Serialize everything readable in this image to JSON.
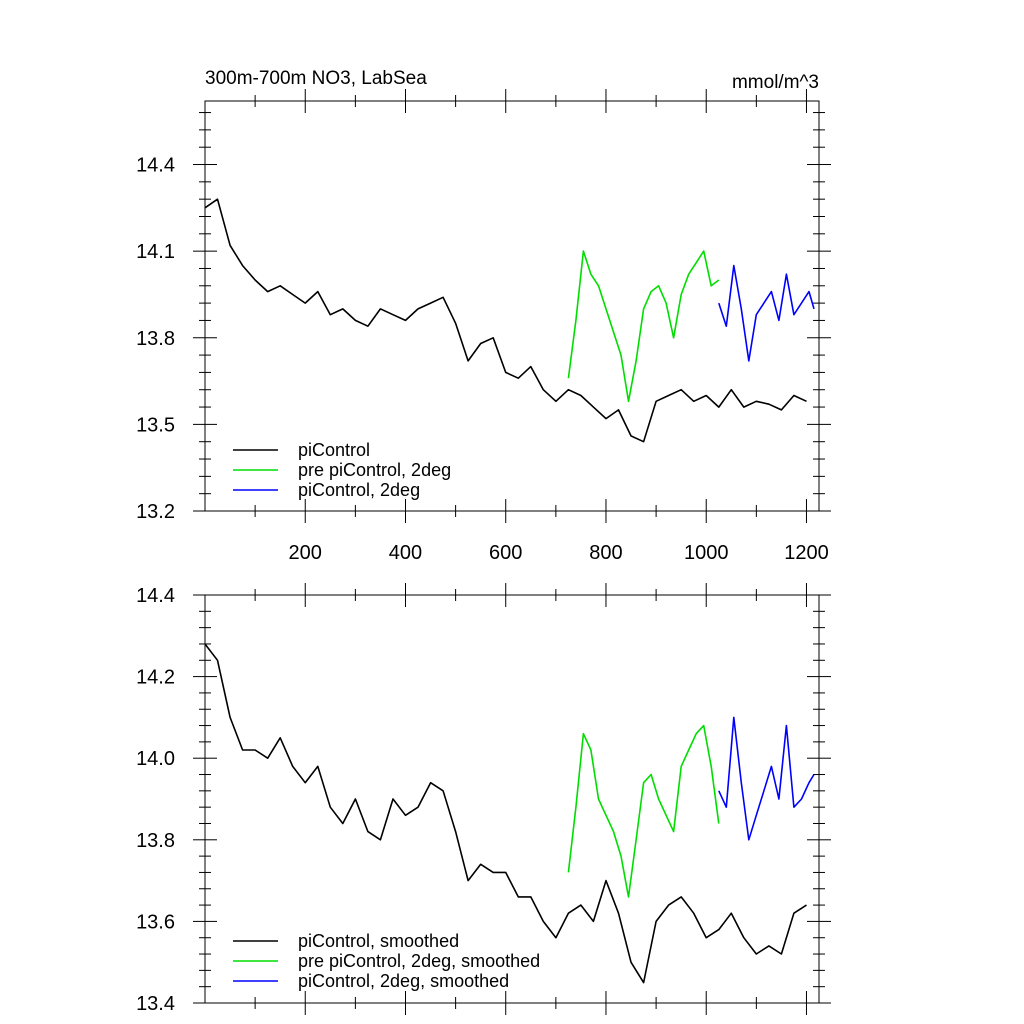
{
  "chart_data": [
    {
      "type": "line",
      "title": "300m-700m NO3, LabSea",
      "units": "mmol/m^3",
      "xlim": [
        0,
        1225
      ],
      "ylim": [
        13.2,
        14.62
      ],
      "x_ticks": [
        200,
        400,
        600,
        800,
        1000,
        1200
      ],
      "x_tick_labels": [
        "200",
        "400",
        "600",
        "800",
        "1000",
        "1200"
      ],
      "y_ticks": [
        13.2,
        13.5,
        13.8,
        14.1,
        14.4
      ],
      "y_tick_labels": [
        "13.2",
        "13.5",
        "13.8",
        "14.1",
        "14.4"
      ],
      "legend_position": "bottom-left",
      "series": [
        {
          "name": "piControl",
          "color": "#000000",
          "x": [
            0,
            25,
            50,
            75,
            100,
            125,
            150,
            175,
            200,
            225,
            250,
            275,
            300,
            325,
            350,
            375,
            400,
            425,
            450,
            475,
            500,
            525,
            550,
            575,
            600,
            625,
            650,
            675,
            700,
            725,
            750,
            775,
            800,
            825,
            850,
            875,
            900,
            925,
            950,
            975,
            1000,
            1025,
            1050,
            1075,
            1100,
            1125,
            1150,
            1175,
            1200
          ],
          "y": [
            14.25,
            14.28,
            14.12,
            14.05,
            14.0,
            13.96,
            13.98,
            13.95,
            13.92,
            13.96,
            13.88,
            13.9,
            13.86,
            13.84,
            13.9,
            13.88,
            13.86,
            13.9,
            13.92,
            13.94,
            13.85,
            13.72,
            13.78,
            13.8,
            13.68,
            13.66,
            13.7,
            13.62,
            13.58,
            13.62,
            13.6,
            13.56,
            13.52,
            13.55,
            13.46,
            13.44,
            13.58,
            13.6,
            13.62,
            13.58,
            13.6,
            13.56,
            13.62,
            13.56,
            13.58,
            13.57,
            13.55,
            13.6,
            13.58
          ]
        },
        {
          "name": "pre piControl, 2deg",
          "color": "#00dd00",
          "x": [
            725,
            740,
            755,
            770,
            785,
            800,
            815,
            830,
            845,
            860,
            875,
            890,
            905,
            920,
            935,
            950,
            965,
            980,
            995,
            1010,
            1025
          ],
          "y": [
            13.66,
            13.86,
            14.1,
            14.02,
            13.98,
            13.9,
            13.82,
            13.74,
            13.58,
            13.72,
            13.9,
            13.96,
            13.98,
            13.92,
            13.8,
            13.95,
            14.02,
            14.06,
            14.1,
            13.98,
            14.0
          ]
        },
        {
          "name": "piControl, 2deg",
          "color": "#0000ff",
          "x": [
            1025,
            1040,
            1055,
            1070,
            1085,
            1100,
            1115,
            1130,
            1145,
            1160,
            1175,
            1190,
            1205,
            1215
          ],
          "y": [
            13.92,
            13.84,
            14.05,
            13.9,
            13.72,
            13.88,
            13.92,
            13.96,
            13.86,
            14.02,
            13.88,
            13.92,
            13.96,
            13.9
          ]
        }
      ]
    },
    {
      "type": "line",
      "xlim": [
        0,
        1225
      ],
      "ylim": [
        13.4,
        14.4
      ],
      "y_ticks": [
        13.4,
        13.6,
        13.8,
        14.0,
        14.2,
        14.4
      ],
      "y_tick_labels": [
        "13.4",
        "13.6",
        "13.8",
        "14.0",
        "14.2",
        "14.4"
      ],
      "legend_position": "bottom-left",
      "series": [
        {
          "name": "piControl, smoothed",
          "color": "#000000",
          "x": [
            0,
            25,
            50,
            75,
            100,
            125,
            150,
            175,
            200,
            225,
            250,
            275,
            300,
            325,
            350,
            375,
            400,
            425,
            450,
            475,
            500,
            525,
            550,
            575,
            600,
            625,
            650,
            675,
            700,
            725,
            750,
            775,
            800,
            825,
            850,
            875,
            900,
            925,
            950,
            975,
            1000,
            1025,
            1050,
            1075,
            1100,
            1125,
            1150,
            1175,
            1200
          ],
          "y": [
            14.28,
            14.24,
            14.1,
            14.02,
            14.02,
            14.0,
            14.05,
            13.98,
            13.94,
            13.98,
            13.88,
            13.84,
            13.9,
            13.82,
            13.8,
            13.9,
            13.86,
            13.88,
            13.94,
            13.92,
            13.82,
            13.7,
            13.74,
            13.72,
            13.72,
            13.66,
            13.66,
            13.6,
            13.56,
            13.62,
            13.64,
            13.6,
            13.7,
            13.62,
            13.5,
            13.45,
            13.6,
            13.64,
            13.66,
            13.62,
            13.56,
            13.58,
            13.62,
            13.56,
            13.52,
            13.54,
            13.52,
            13.62,
            13.64
          ]
        },
        {
          "name": "pre piControl, 2deg, smoothed",
          "color": "#00dd00",
          "x": [
            725,
            740,
            755,
            770,
            785,
            800,
            815,
            830,
            845,
            860,
            875,
            890,
            905,
            920,
            935,
            950,
            965,
            980,
            995,
            1010,
            1025
          ],
          "y": [
            13.72,
            13.88,
            14.06,
            14.02,
            13.9,
            13.86,
            13.82,
            13.76,
            13.66,
            13.8,
            13.94,
            13.96,
            13.9,
            13.86,
            13.82,
            13.98,
            14.02,
            14.06,
            14.08,
            13.98,
            13.84
          ]
        },
        {
          "name": "piControl, 2deg, smoothed",
          "color": "#0000ff",
          "x": [
            1025,
            1040,
            1055,
            1070,
            1085,
            1100,
            1115,
            1130,
            1145,
            1160,
            1175,
            1190,
            1205,
            1215
          ],
          "y": [
            13.92,
            13.88,
            14.1,
            13.94,
            13.8,
            13.86,
            13.92,
            13.98,
            13.9,
            14.08,
            13.88,
            13.9,
            13.94,
            13.96
          ]
        }
      ]
    }
  ]
}
